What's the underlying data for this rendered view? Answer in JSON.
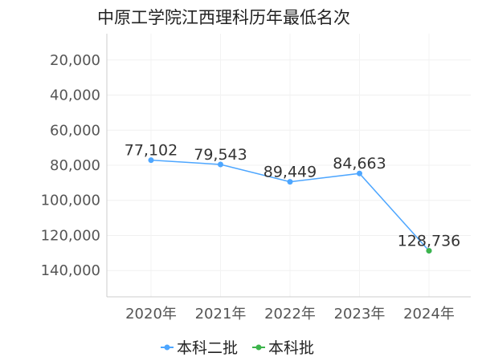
{
  "chart_data": {
    "type": "line",
    "title": "中原工学院江西理科历年最低名次",
    "categories": [
      "2020年",
      "2021年",
      "2022年",
      "2023年",
      "2024年"
    ],
    "series": [
      {
        "name": "本科二批",
        "color": "#4da6ff",
        "values": [
          77102,
          79543,
          89449,
          84663,
          128736
        ]
      },
      {
        "name": "本科批",
        "color": "#3cb44b",
        "values": [
          null,
          null,
          null,
          null,
          128736
        ]
      }
    ],
    "data_labels": [
      "77,102",
      "79,543",
      "89,449",
      "84,663",
      "128,736"
    ],
    "y_ticks": [
      20000,
      40000,
      60000,
      80000,
      100000,
      120000,
      140000
    ],
    "y_tick_labels": [
      "20,000",
      "40,000",
      "60,000",
      "80,000",
      "100,000",
      "120,000",
      "140,000"
    ],
    "ylim": [
      5000,
      155000
    ],
    "y_reversed": true,
    "grid": true,
    "legend_position": "bottom-center"
  }
}
